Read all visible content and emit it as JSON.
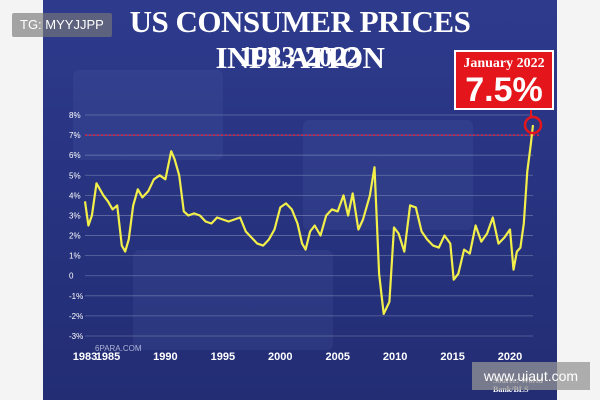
{
  "watermark_top_left": "TG: MYYJJPP",
  "watermark_bottom_right": "www.uiaut.com",
  "photo_credit": "6PARA.COM",
  "chart_data": {
    "type": "line",
    "title": "US CONSUMER PRICES INFLATION",
    "subtitle": "1983-2022",
    "source": "Source: World Bank/BLS",
    "annotation": {
      "label": "January 2022",
      "value_text": "7.5%",
      "x": 2022.0,
      "y": 7.5
    },
    "reference_line": 7.0,
    "ylim": [
      -3,
      8
    ],
    "xlim": [
      1983,
      2022
    ],
    "y_ticks": [
      "-3%",
      "-2%",
      "-1%",
      "0",
      "1%",
      "2%",
      "3%",
      "4%",
      "5%",
      "6%",
      "7%",
      "8%"
    ],
    "x_ticks": [
      "1983",
      "1985",
      "1990",
      "1995",
      "2000",
      "2005",
      "2010",
      "2015",
      "2020"
    ],
    "colors": {
      "line": "#f2ef4a",
      "reference": "#e2233f",
      "callout": "#e4161b"
    },
    "x": [
      1983.0,
      1983.3,
      1983.6,
      1984.0,
      1984.3,
      1984.6,
      1985.0,
      1985.4,
      1985.8,
      1986.2,
      1986.5,
      1986.8,
      1987.2,
      1987.6,
      1988.0,
      1988.5,
      1989.0,
      1989.5,
      1990.0,
      1990.5,
      1990.8,
      1991.2,
      1991.6,
      1992.0,
      1992.5,
      1993.0,
      1993.5,
      1994.0,
      1994.5,
      1995.0,
      1995.5,
      1996.0,
      1996.5,
      1997.0,
      1997.5,
      1998.0,
      1998.5,
      1999.0,
      1999.5,
      2000.0,
      2000.5,
      2001.0,
      2001.5,
      2001.9,
      2002.2,
      2002.6,
      2003.0,
      2003.5,
      2004.0,
      2004.5,
      2005.0,
      2005.5,
      2005.9,
      2006.3,
      2006.8,
      2007.2,
      2007.8,
      2008.2,
      2008.6,
      2009.0,
      2009.5,
      2009.9,
      2010.3,
      2010.8,
      2011.3,
      2011.8,
      2012.3,
      2012.8,
      2013.3,
      2013.8,
      2014.3,
      2014.8,
      2015.1,
      2015.5,
      2016.0,
      2016.5,
      2017.0,
      2017.5,
      2018.0,
      2018.5,
      2019.0,
      2019.5,
      2020.0,
      2020.3,
      2020.6,
      2020.9,
      2021.2,
      2021.5,
      2021.8,
      2022.0
    ],
    "y": [
      3.7,
      2.5,
      3.0,
      4.6,
      4.3,
      4.0,
      3.7,
      3.3,
      3.5,
      1.5,
      1.2,
      1.8,
      3.5,
      4.3,
      3.9,
      4.2,
      4.8,
      5.0,
      4.8,
      6.2,
      5.8,
      5.0,
      3.2,
      3.0,
      3.1,
      3.0,
      2.7,
      2.6,
      2.9,
      2.8,
      2.7,
      2.8,
      2.9,
      2.2,
      1.9,
      1.6,
      1.5,
      1.8,
      2.3,
      3.4,
      3.6,
      3.3,
      2.6,
      1.6,
      1.3,
      2.2,
      2.5,
      2.0,
      3.0,
      3.3,
      3.2,
      4.0,
      3.0,
      4.1,
      2.3,
      2.8,
      4.0,
      5.4,
      0.1,
      -1.9,
      -1.3,
      2.4,
      2.1,
      1.2,
      3.5,
      3.4,
      2.2,
      1.8,
      1.5,
      1.4,
      2.0,
      1.6,
      -0.2,
      0.1,
      1.3,
      1.1,
      2.5,
      1.7,
      2.1,
      2.9,
      1.6,
      1.9,
      2.3,
      0.3,
      1.2,
      1.4,
      2.6,
      5.2,
      6.5,
      7.5
    ]
  }
}
